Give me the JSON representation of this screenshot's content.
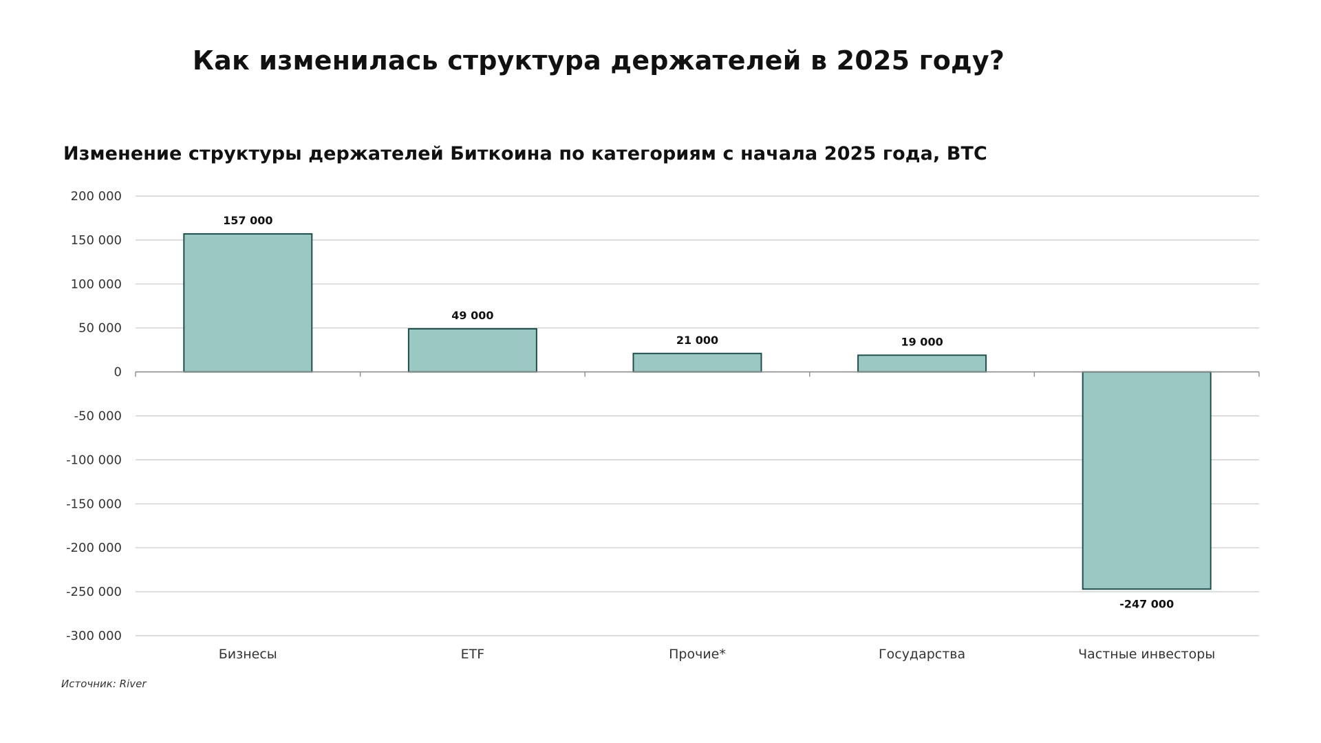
{
  "page": {
    "title": "Как изменилась структура держателей в 2025 году?",
    "source": "Источник: River"
  },
  "chart_data": {
    "type": "bar",
    "title": "Изменение структуры держателей Биткоина по категориям с начала 2025 года, BTC",
    "xlabel": "",
    "ylabel": "",
    "categories": [
      "Бизнесы",
      "ETF",
      "Прочие*",
      "Государства",
      "Частные инвесторы"
    ],
    "values": [
      157000,
      49000,
      21000,
      19000,
      -247000
    ],
    "data_labels": [
      "157 000",
      "49 000",
      "21 000",
      "19 000",
      "-247 000"
    ],
    "ylim": [
      -300000,
      200000
    ],
    "yticks": [
      200000,
      150000,
      100000,
      50000,
      0,
      -50000,
      -100000,
      -150000,
      -200000,
      -250000,
      -300000
    ],
    "ytick_labels": [
      "200 000",
      "150 000",
      "100 000",
      "50 000",
      "0",
      "-50 000",
      "-100 000",
      "-150 000",
      "-200 000",
      "-250 000",
      "-300 000"
    ],
    "grid": true,
    "legend": "none",
    "colors": {
      "bar_fill": "#9cc8c3",
      "bar_stroke": "#1f4f4c",
      "grid": "#c8c8c8",
      "axis": "#8c8c8c"
    }
  }
}
